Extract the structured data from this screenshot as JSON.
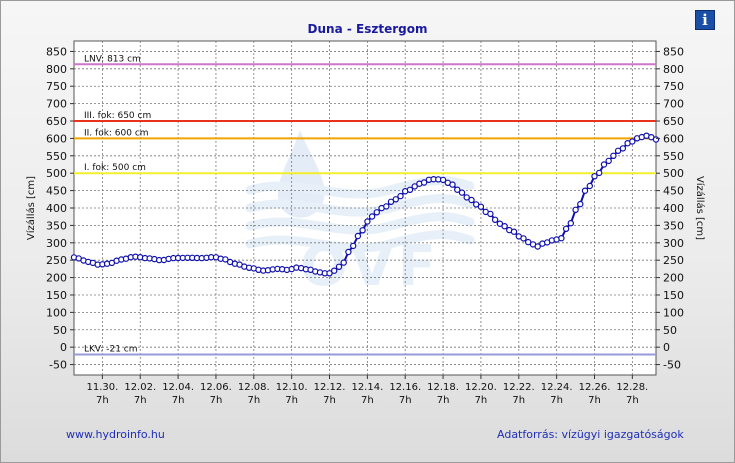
{
  "header": {
    "title": "Duna - Esztergom",
    "info_icon": "info-icon",
    "info_glyph": "i"
  },
  "footer": {
    "left_link": "www.hydroinfo.hu",
    "source": "Adatforrás: vízügyi igazgatóságok"
  },
  "watermark": {
    "text": "OVF"
  },
  "chart_data": {
    "type": "line",
    "title": "Duna - Esztergom",
    "ylabel_left": "Vízállás [cm]",
    "ylabel_right": "Vízállás [cm]",
    "ylim": [
      -80,
      880
    ],
    "yticks": [
      -50,
      0,
      50,
      100,
      150,
      200,
      250,
      300,
      350,
      400,
      450,
      500,
      550,
      600,
      650,
      700,
      750,
      800,
      850
    ],
    "xlim_days": [
      0,
      30.75
    ],
    "x_ticks": [
      {
        "day": 1.5,
        "date": "11.30.",
        "hour": "7h"
      },
      {
        "day": 3.5,
        "date": "12.02.",
        "hour": "7h"
      },
      {
        "day": 5.5,
        "date": "12.04.",
        "hour": "7h"
      },
      {
        "day": 7.5,
        "date": "12.06.",
        "hour": "7h"
      },
      {
        "day": 9.5,
        "date": "12.08.",
        "hour": "7h"
      },
      {
        "day": 11.5,
        "date": "12.10.",
        "hour": "7h"
      },
      {
        "day": 13.5,
        "date": "12.12.",
        "hour": "7h"
      },
      {
        "day": 15.5,
        "date": "12.14.",
        "hour": "7h"
      },
      {
        "day": 17.5,
        "date": "12.16.",
        "hour": "7h"
      },
      {
        "day": 19.5,
        "date": "12.18.",
        "hour": "7h"
      },
      {
        "day": 21.5,
        "date": "12.20.",
        "hour": "7h"
      },
      {
        "day": 23.5,
        "date": "12.22.",
        "hour": "7h"
      },
      {
        "day": 25.5,
        "date": "12.24.",
        "hour": "7h"
      },
      {
        "day": 27.5,
        "date": "12.26.",
        "hour": "7h"
      },
      {
        "day": 29.5,
        "date": "12.28.",
        "hour": "7h"
      }
    ],
    "grid": true,
    "thresholds": [
      {
        "label": "LNV: 813 cm",
        "value": 813,
        "color": "#cc77cc"
      },
      {
        "label": "III. fok: 650 cm",
        "value": 650,
        "color": "#e8321e"
      },
      {
        "label": "II. fok: 600 cm",
        "value": 600,
        "color": "#f0a400"
      },
      {
        "label": "I. fok: 500 cm",
        "value": 500,
        "color": "#f2ef2a"
      },
      {
        "label": "LKV: -21 cm",
        "value": -21,
        "color": "#9a9ad8"
      }
    ],
    "series": [
      {
        "color": "#1010aa",
        "keyframes": [
          [
            0.0,
            258
          ],
          [
            0.8,
            245
          ],
          [
            1.3,
            237
          ],
          [
            1.8,
            240
          ],
          [
            2.5,
            252
          ],
          [
            3.2,
            260
          ],
          [
            4.0,
            255
          ],
          [
            4.6,
            250
          ],
          [
            5.3,
            256
          ],
          [
            6.0,
            257
          ],
          [
            6.8,
            256
          ],
          [
            7.4,
            259
          ],
          [
            7.9,
            253
          ],
          [
            8.5,
            240
          ],
          [
            9.3,
            228
          ],
          [
            10.0,
            220
          ],
          [
            10.8,
            225
          ],
          [
            11.3,
            222
          ],
          [
            11.8,
            229
          ],
          [
            12.3,
            224
          ],
          [
            13.0,
            215
          ],
          [
            13.4,
            211
          ],
          [
            13.8,
            220
          ],
          [
            14.2,
            242
          ],
          [
            14.7,
            290
          ],
          [
            15.2,
            335
          ],
          [
            15.7,
            375
          ],
          [
            16.3,
            400
          ],
          [
            17.0,
            425
          ],
          [
            17.6,
            450
          ],
          [
            18.3,
            470
          ],
          [
            18.9,
            483
          ],
          [
            19.4,
            482
          ],
          [
            19.9,
            470
          ],
          [
            20.3,
            452
          ],
          [
            20.8,
            430
          ],
          [
            21.3,
            410
          ],
          [
            21.9,
            385
          ],
          [
            22.5,
            355
          ],
          [
            23.1,
            335
          ],
          [
            23.7,
            313
          ],
          [
            24.2,
            296
          ],
          [
            24.45,
            289
          ],
          [
            24.8,
            298
          ],
          [
            25.3,
            307
          ],
          [
            25.7,
            312
          ],
          [
            26.1,
            345
          ],
          [
            26.6,
            400
          ],
          [
            27.1,
            455
          ],
          [
            27.6,
            495
          ],
          [
            28.2,
            535
          ],
          [
            28.8,
            565
          ],
          [
            29.4,
            590
          ],
          [
            29.9,
            603
          ],
          [
            30.3,
            608
          ],
          [
            30.75,
            597
          ]
        ]
      }
    ]
  }
}
